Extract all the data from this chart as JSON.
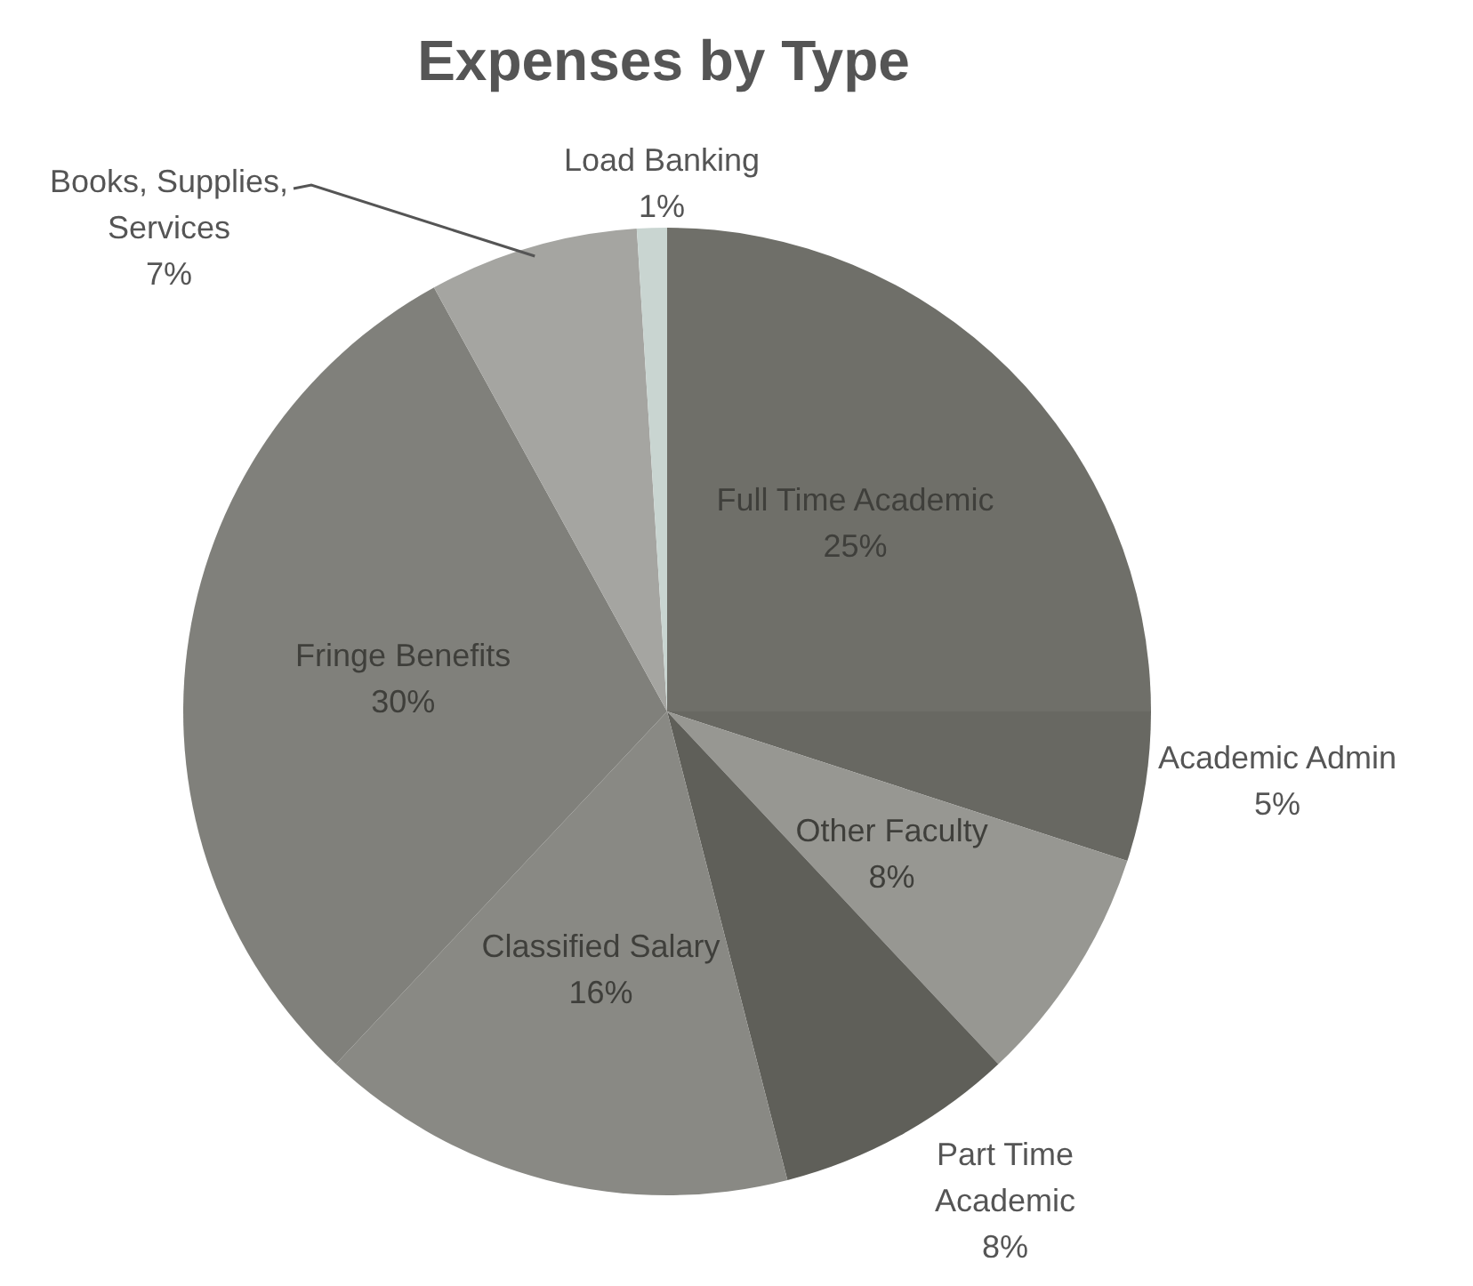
{
  "chart_data": {
    "type": "pie",
    "title": "Expenses by Type",
    "categories": [
      "Full Time Academic",
      "Academic Admin",
      "Other Faculty",
      "Part Time Academic",
      "Classified Salary",
      "Fringe Benefits",
      "Books, Supplies, Services",
      "Load Banking"
    ],
    "values": [
      25,
      5,
      8,
      8,
      16,
      30,
      7,
      1
    ],
    "colors": [
      "#6f6f69",
      "#686862",
      "#979792",
      "#5f5f59",
      "#898984",
      "#80807b",
      "#a5a5a1",
      "#c9d5d1"
    ],
    "value_labels": [
      "25%",
      "5%",
      "8%",
      "8%",
      "16%",
      "30%",
      "7%",
      "1%"
    ]
  }
}
